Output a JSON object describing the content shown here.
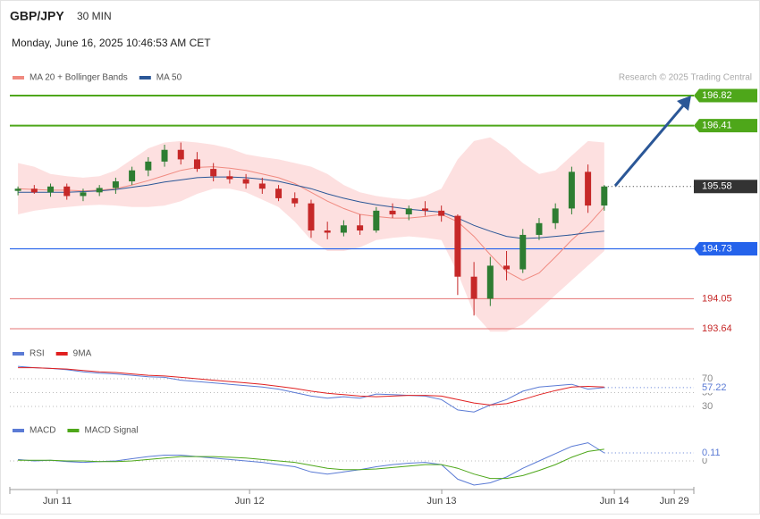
{
  "chart_data": [
    {
      "type": "candlestick",
      "title": "GBP/JPY",
      "subtitle": "30 MIN",
      "date": "Monday, June 16, 2025 10:46:53 AM CET",
      "credit": "Research © 2025 Trading Central",
      "up_color": "#2e7d32",
      "down_color": "#c62828",
      "open": [
        195.52,
        195.55,
        195.5,
        195.58,
        195.45,
        195.5,
        195.56,
        195.65,
        195.8,
        195.92,
        196.08,
        195.95,
        195.82,
        195.72,
        195.68,
        195.62,
        195.55,
        195.42,
        195.35,
        194.98,
        194.95,
        195.05,
        194.98,
        195.25,
        195.2,
        195.28,
        195.25,
        195.18,
        194.35,
        194.05,
        194.5,
        194.45,
        194.92,
        195.08,
        195.28,
        195.78,
        195.32
      ],
      "high": [
        195.58,
        195.6,
        195.62,
        195.62,
        195.55,
        195.6,
        195.7,
        195.85,
        195.98,
        196.15,
        196.18,
        196.05,
        195.9,
        195.8,
        195.75,
        195.7,
        195.6,
        195.5,
        195.4,
        195.1,
        195.12,
        195.2,
        195.3,
        195.35,
        195.32,
        195.38,
        195.32,
        195.2,
        194.55,
        194.62,
        194.7,
        195.0,
        195.15,
        195.35,
        195.85,
        195.88,
        195.6
      ],
      "low": [
        195.46,
        195.48,
        195.44,
        195.4,
        195.38,
        195.45,
        195.48,
        195.6,
        195.72,
        195.85,
        195.88,
        195.78,
        195.65,
        195.62,
        195.55,
        195.48,
        195.38,
        195.3,
        194.88,
        194.86,
        194.9,
        194.92,
        194.95,
        195.15,
        195.12,
        195.18,
        195.1,
        194.1,
        193.82,
        193.95,
        194.3,
        194.4,
        194.85,
        195.0,
        195.2,
        195.22,
        195.25
      ],
      "close": [
        195.55,
        195.5,
        195.58,
        195.45,
        195.5,
        195.56,
        195.65,
        195.8,
        195.92,
        196.08,
        195.95,
        195.82,
        195.72,
        195.68,
        195.62,
        195.55,
        195.42,
        195.35,
        194.98,
        194.95,
        195.05,
        194.98,
        195.25,
        195.2,
        195.28,
        195.25,
        195.18,
        194.35,
        194.05,
        194.5,
        194.45,
        194.92,
        195.08,
        195.28,
        195.78,
        195.32,
        195.58
      ],
      "series": [
        {
          "name": "MA 20 + Bollinger Bands",
          "color": "#f08a80",
          "band_color": "#fde0e0",
          "values": [
            195.55,
            195.54,
            195.53,
            195.53,
            195.52,
            195.53,
            195.55,
            195.6,
            195.66,
            195.73,
            195.8,
            195.84,
            195.85,
            195.83,
            195.8,
            195.75,
            195.7,
            195.62,
            195.5,
            195.38,
            195.28,
            195.2,
            195.17,
            195.15,
            195.15,
            195.17,
            195.2,
            195.1,
            194.9,
            194.65,
            194.42,
            194.3,
            194.4,
            194.62,
            194.85,
            195.05,
            195.3
          ],
          "upper": [
            195.9,
            195.85,
            195.75,
            195.72,
            195.7,
            195.72,
            195.8,
            195.95,
            196.1,
            196.18,
            196.2,
            196.18,
            196.15,
            196.1,
            196.02,
            195.98,
            195.95,
            195.9,
            195.85,
            195.75,
            195.6,
            195.5,
            195.45,
            195.42,
            195.4,
            195.45,
            195.55,
            195.95,
            196.2,
            196.25,
            196.1,
            195.9,
            195.75,
            195.8,
            196.0,
            196.2,
            196.18
          ],
          "lower": [
            195.2,
            195.25,
            195.28,
            195.3,
            195.32,
            195.33,
            195.32,
            195.3,
            195.3,
            195.32,
            195.38,
            195.48,
            195.55,
            195.55,
            195.5,
            195.4,
            195.3,
            195.1,
            194.85,
            194.7,
            194.7,
            194.75,
            194.85,
            194.88,
            194.9,
            194.88,
            194.85,
            194.4,
            193.85,
            193.6,
            193.6,
            193.7,
            193.9,
            194.1,
            194.3,
            194.5,
            194.7
          ]
        },
        {
          "name": "MA 50",
          "color": "#2b5797",
          "values": [
            195.5,
            195.5,
            195.5,
            195.5,
            195.51,
            195.52,
            195.54,
            195.57,
            195.6,
            195.64,
            195.67,
            195.7,
            195.71,
            195.71,
            195.7,
            195.68,
            195.65,
            195.6,
            195.55,
            195.48,
            195.42,
            195.37,
            195.33,
            195.3,
            195.27,
            195.25,
            195.23,
            195.15,
            195.05,
            194.97,
            194.9,
            194.87,
            194.88,
            194.9,
            194.92,
            194.95,
            194.97
          ]
        }
      ],
      "levels": [
        {
          "value": 196.82,
          "color": "#4ea71a",
          "style": "tag"
        },
        {
          "value": 196.41,
          "color": "#4ea71a",
          "style": "tag"
        },
        {
          "value": 195.58,
          "color": "#333333",
          "style": "current"
        },
        {
          "value": 194.73,
          "color": "#2563eb",
          "style": "tag"
        },
        {
          "value": 194.05,
          "color": "#e57373",
          "style": "text"
        },
        {
          "value": 193.64,
          "color": "#e57373",
          "style": "text"
        }
      ],
      "ylim": [
        193.64,
        196.82
      ],
      "xlim": [
        -0.5,
        41.5
      ],
      "xticks": [
        {
          "value": 2.41,
          "label": "Jun 11"
        },
        {
          "value": 14.22,
          "label": "Jun 12"
        },
        {
          "value": 26.02,
          "label": "Jun 13"
        },
        {
          "value": 36.62,
          "label": "Jun 14"
        },
        {
          "value": 40.3,
          "label": "Jun 29"
        }
      ]
    },
    {
      "type": "line",
      "series": [
        {
          "name": "RSI",
          "color": "#5b7bd5",
          "values": [
            88,
            86,
            85,
            83,
            80,
            78,
            77,
            75,
            73,
            72,
            68,
            66,
            64,
            62,
            60,
            58,
            55,
            50,
            45,
            42,
            44,
            42,
            48,
            47,
            46,
            45,
            40,
            25,
            22,
            32,
            40,
            52,
            58,
            60,
            62,
            55,
            57.22
          ]
        },
        {
          "name": "9MA",
          "color": "#e02020",
          "values": [
            86,
            86,
            85,
            84,
            82,
            80,
            79,
            77,
            75,
            74,
            72,
            70,
            68,
            66,
            64,
            62,
            59,
            56,
            52,
            49,
            47,
            45,
            44,
            45,
            46,
            46,
            45,
            40,
            35,
            32,
            34,
            40,
            47,
            53,
            58,
            59,
            58
          ]
        }
      ],
      "ylim": [
        20,
        80
      ],
      "yticks": [
        30,
        50,
        70
      ]
    },
    {
      "type": "line",
      "series": [
        {
          "name": "MACD",
          "color": "#5b7bd5",
          "values": [
            0.02,
            0.0,
            0.01,
            -0.01,
            -0.02,
            -0.01,
            0.0,
            0.03,
            0.06,
            0.08,
            0.08,
            0.06,
            0.04,
            0.02,
            0.0,
            -0.02,
            -0.05,
            -0.08,
            -0.15,
            -0.18,
            -0.15,
            -0.12,
            -0.08,
            -0.05,
            -0.03,
            -0.02,
            -0.05,
            -0.25,
            -0.33,
            -0.3,
            -0.22,
            -0.1,
            0.0,
            0.1,
            0.2,
            0.25,
            0.11
          ]
        },
        {
          "name": "MACD Signal",
          "color": "#4ea71a",
          "values": [
            0.01,
            0.01,
            0.01,
            0.0,
            0.0,
            -0.01,
            -0.01,
            0.0,
            0.02,
            0.04,
            0.06,
            0.06,
            0.06,
            0.05,
            0.04,
            0.02,
            0.0,
            -0.02,
            -0.06,
            -0.1,
            -0.12,
            -0.12,
            -0.11,
            -0.09,
            -0.07,
            -0.05,
            -0.05,
            -0.1,
            -0.18,
            -0.24,
            -0.24,
            -0.2,
            -0.13,
            -0.05,
            0.05,
            0.13,
            0.16
          ]
        }
      ],
      "ylim": [
        -0.4,
        0.4
      ],
      "yticks": [
        0
      ]
    }
  ]
}
